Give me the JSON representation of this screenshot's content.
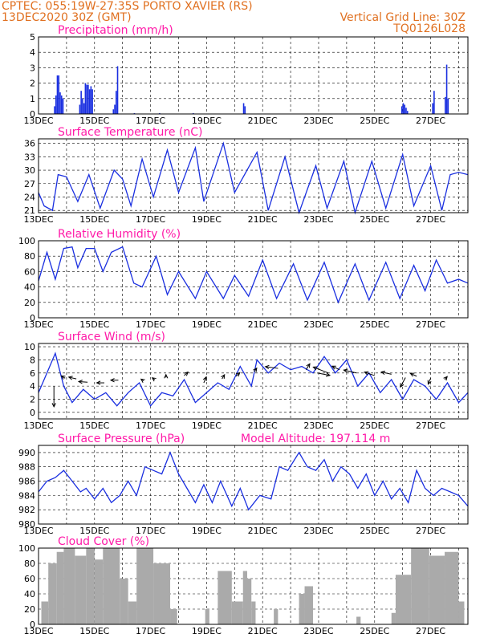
{
  "header": {
    "line1": "CPTEC:   055:19W-27:35S   PORTO XAVIER (RS)",
    "line2": "13DEC2020 30Z (GMT)",
    "grid_note": "Vertical Grid Line: 30Z",
    "code": "TQ0126L028"
  },
  "colors": {
    "header": "#e07020",
    "title": "#ff1aa8",
    "line": "#1a2fe0",
    "cloud": "#aaaaaa"
  },
  "chart_data": [
    {
      "type": "bar",
      "title": "Precipitation (mm/h)",
      "ylim": [
        0,
        5
      ],
      "yticks": [
        "0",
        "1",
        "2",
        "3",
        "4",
        "5"
      ],
      "xticks": [
        "13DEC",
        "15DEC",
        "17DEC",
        "19DEC",
        "21DEC",
        "23DEC",
        "25DEC",
        "27DEC"
      ],
      "x_start_label": "13DEC",
      "days_span": 15.33,
      "bars": [
        [
          0.55,
          0.5
        ],
        [
          0.6,
          1.2
        ],
        [
          0.65,
          2.5
        ],
        [
          0.7,
          2.5
        ],
        [
          0.75,
          1.4
        ],
        [
          0.8,
          1.2
        ],
        [
          0.85,
          1.0
        ],
        [
          1.45,
          0.6
        ],
        [
          1.5,
          1.5
        ],
        [
          1.55,
          1.0
        ],
        [
          1.6,
          0.7
        ],
        [
          1.65,
          2.0
        ],
        [
          1.7,
          1.9
        ],
        [
          1.75,
          1.9
        ],
        [
          1.8,
          1.6
        ],
        [
          1.85,
          1.8
        ],
        [
          1.9,
          1.6
        ],
        [
          2.65,
          0.3
        ],
        [
          2.7,
          0.6
        ],
        [
          2.75,
          1.5
        ],
        [
          2.8,
          3.1
        ],
        [
          3.4,
          0.05
        ],
        [
          4.3,
          0.05
        ],
        [
          5.5,
          0.05
        ],
        [
          7.3,
          0.7
        ],
        [
          7.35,
          0.5
        ],
        [
          12.95,
          0.5
        ],
        [
          13.0,
          0.7
        ],
        [
          13.05,
          0.6
        ],
        [
          13.1,
          0.4
        ],
        [
          13.15,
          0.2
        ],
        [
          14.05,
          0.7
        ],
        [
          14.1,
          1.5
        ],
        [
          14.5,
          1.1
        ],
        [
          14.55,
          3.2
        ],
        [
          14.6,
          1.0
        ]
      ]
    },
    {
      "type": "line",
      "title": "Surface Temperature (nC)",
      "ylim": [
        20.5,
        37
      ],
      "yticks": [
        "21",
        "24",
        "27",
        "30",
        "33",
        "36"
      ],
      "xticks": [
        "13DEC",
        "15DEC",
        "17DEC",
        "19DEC",
        "21DEC",
        "23DEC",
        "25DEC",
        "27DEC"
      ],
      "points": [
        [
          0,
          25
        ],
        [
          0.2,
          22
        ],
        [
          0.5,
          21
        ],
        [
          0.7,
          29
        ],
        [
          1.0,
          28.5
        ],
        [
          1.4,
          23
        ],
        [
          1.8,
          29
        ],
        [
          2.2,
          21.5
        ],
        [
          2.7,
          30
        ],
        [
          3.0,
          28
        ],
        [
          3.3,
          22
        ],
        [
          3.7,
          32.5
        ],
        [
          4.1,
          24
        ],
        [
          4.6,
          34.5
        ],
        [
          5.0,
          25
        ],
        [
          5.6,
          35
        ],
        [
          5.9,
          23
        ],
        [
          6.6,
          36
        ],
        [
          7.0,
          25
        ],
        [
          7.8,
          34
        ],
        [
          8.2,
          21
        ],
        [
          8.8,
          33
        ],
        [
          9.3,
          20.5
        ],
        [
          9.9,
          31
        ],
        [
          10.3,
          21.5
        ],
        [
          10.9,
          32
        ],
        [
          11.3,
          20.5
        ],
        [
          11.9,
          32
        ],
        [
          12.4,
          21.5
        ],
        [
          13.0,
          33.5
        ],
        [
          13.4,
          22
        ],
        [
          14.0,
          31
        ],
        [
          14.4,
          21
        ],
        [
          14.7,
          29
        ],
        [
          15.0,
          29.5
        ],
        [
          15.33,
          29
        ]
      ]
    },
    {
      "type": "line",
      "title": "Relative Humidity (%)",
      "ylim": [
        0,
        100
      ],
      "yticks": [
        "0",
        "20",
        "40",
        "60",
        "80",
        "100"
      ],
      "xticks": [
        "13DEC",
        "15DEC",
        "17DEC",
        "19DEC",
        "21DEC",
        "23DEC",
        "25DEC",
        "27DEC"
      ],
      "points": [
        [
          0,
          48
        ],
        [
          0.3,
          85
        ],
        [
          0.6,
          50
        ],
        [
          0.9,
          90
        ],
        [
          1.2,
          92
        ],
        [
          1.4,
          65
        ],
        [
          1.7,
          90
        ],
        [
          2.0,
          90
        ],
        [
          2.3,
          60
        ],
        [
          2.6,
          85
        ],
        [
          3.0,
          92
        ],
        [
          3.4,
          45
        ],
        [
          3.7,
          40
        ],
        [
          4.2,
          80
        ],
        [
          4.6,
          30
        ],
        [
          5.0,
          60
        ],
        [
          5.6,
          25
        ],
        [
          6.0,
          60
        ],
        [
          6.6,
          25
        ],
        [
          7.0,
          55
        ],
        [
          7.5,
          28
        ],
        [
          8.0,
          75
        ],
        [
          8.5,
          25
        ],
        [
          9.1,
          70
        ],
        [
          9.6,
          23
        ],
        [
          10.2,
          72
        ],
        [
          10.7,
          20
        ],
        [
          11.3,
          70
        ],
        [
          11.8,
          23
        ],
        [
          12.4,
          72
        ],
        [
          12.9,
          25
        ],
        [
          13.4,
          68
        ],
        [
          13.8,
          35
        ],
        [
          14.2,
          75
        ],
        [
          14.6,
          45
        ],
        [
          15.0,
          50
        ],
        [
          15.33,
          45
        ]
      ]
    },
    {
      "type": "line",
      "title": "Surface Wind (m/s)",
      "ylim": [
        -1,
        10.5
      ],
      "yticks": [
        "0",
        "2",
        "4",
        "6",
        "8",
        "10"
      ],
      "xticks": [
        "13DEC",
        "15DEC",
        "17DEC",
        "19DEC",
        "21DEC",
        "23DEC",
        "25DEC",
        "27DEC"
      ],
      "points": [
        [
          0,
          3
        ],
        [
          0.3,
          6
        ],
        [
          0.6,
          9
        ],
        [
          0.9,
          4
        ],
        [
          1.2,
          1.5
        ],
        [
          1.6,
          3.5
        ],
        [
          2.0,
          2
        ],
        [
          2.4,
          3
        ],
        [
          2.8,
          1
        ],
        [
          3.2,
          3
        ],
        [
          3.6,
          4.5
        ],
        [
          4.0,
          1
        ],
        [
          4.4,
          3
        ],
        [
          4.8,
          2.5
        ],
        [
          5.2,
          5
        ],
        [
          5.6,
          1.5
        ],
        [
          6.0,
          3
        ],
        [
          6.4,
          4.5
        ],
        [
          6.8,
          3.5
        ],
        [
          7.2,
          7
        ],
        [
          7.6,
          4
        ],
        [
          7.8,
          8
        ],
        [
          8.2,
          6
        ],
        [
          8.6,
          7.5
        ],
        [
          9.0,
          6.5
        ],
        [
          9.4,
          7
        ],
        [
          9.8,
          6
        ],
        [
          10.2,
          8.5
        ],
        [
          10.6,
          6
        ],
        [
          11.0,
          8
        ],
        [
          11.4,
          4
        ],
        [
          11.8,
          6
        ],
        [
          12.2,
          3
        ],
        [
          12.6,
          5
        ],
        [
          13.0,
          2
        ],
        [
          13.4,
          5
        ],
        [
          13.8,
          4
        ],
        [
          14.2,
          2
        ],
        [
          14.6,
          4.5
        ],
        [
          15.0,
          1.5
        ],
        [
          15.33,
          3
        ]
      ],
      "arrows": [
        [
          0.55,
          4.0,
          0,
          -3.5
        ],
        [
          0.95,
          5.2,
          -0.15,
          0.4
        ],
        [
          1.35,
          5.1,
          -0.3,
          0.3
        ],
        [
          1.75,
          4.6,
          -0.35,
          0.1
        ],
        [
          2.35,
          4.5,
          -0.3,
          0.0
        ],
        [
          2.85,
          4.9,
          -0.3,
          0.0
        ],
        [
          3.75,
          4.8,
          -0.1,
          0.3
        ],
        [
          4.15,
          5.0,
          -0.1,
          0.3
        ],
        [
          4.55,
          5.3,
          0.0,
          0.5
        ],
        [
          5.2,
          5.6,
          0.15,
          0.6
        ],
        [
          5.9,
          4.5,
          0.1,
          1.0
        ],
        [
          6.55,
          5.1,
          0.1,
          0.7
        ],
        [
          7.05,
          5.5,
          0.15,
          0.6
        ],
        [
          7.7,
          6.2,
          0.1,
          0.6
        ],
        [
          8.55,
          6.7,
          -0.5,
          0.3
        ],
        [
          9.55,
          6.5,
          0.15,
          1.0
        ],
        [
          9.95,
          6.0,
          0.5,
          -0.4
        ],
        [
          10.35,
          6.0,
          -0.6,
          1.0
        ],
        [
          10.75,
          6.5,
          -0.3,
          0.6
        ],
        [
          11.35,
          6.0,
          -0.5,
          0.5
        ],
        [
          12.0,
          5.6,
          -0.4,
          0.6
        ],
        [
          12.6,
          5.8,
          -0.4,
          0.4
        ],
        [
          13.1,
          5.3,
          -0.2,
          -1.6
        ],
        [
          13.5,
          5.5,
          -0.25,
          0.5
        ],
        [
          14.0,
          5.2,
          -0.1,
          -1.0
        ],
        [
          14.5,
          5.0,
          0.1,
          0.5
        ]
      ]
    },
    {
      "type": "line",
      "title": "Surface Pressure (hPa)",
      "annotation": "Model Altitude: 197.114  m",
      "ylim": [
        980,
        991
      ],
      "yticks": [
        "980",
        "982",
        "984",
        "986",
        "988",
        "990"
      ],
      "xticks": [
        "13DEC",
        "15DEC",
        "17DEC",
        "19DEC",
        "21DEC",
        "23DEC",
        "25DEC",
        "27DEC"
      ],
      "points": [
        [
          0,
          984.5
        ],
        [
          0.3,
          986
        ],
        [
          0.6,
          986.5
        ],
        [
          0.9,
          987.5
        ],
        [
          1.2,
          986
        ],
        [
          1.5,
          984.5
        ],
        [
          1.7,
          985
        ],
        [
          2.0,
          983.5
        ],
        [
          2.3,
          985
        ],
        [
          2.6,
          983
        ],
        [
          2.9,
          984
        ],
        [
          3.2,
          986
        ],
        [
          3.5,
          984
        ],
        [
          3.8,
          988
        ],
        [
          4.1,
          987.5
        ],
        [
          4.4,
          987
        ],
        [
          4.7,
          990
        ],
        [
          5.0,
          987
        ],
        [
          5.3,
          985
        ],
        [
          5.6,
          983
        ],
        [
          5.9,
          985.5
        ],
        [
          6.2,
          983
        ],
        [
          6.5,
          986
        ],
        [
          6.9,
          982.5
        ],
        [
          7.2,
          985
        ],
        [
          7.5,
          982
        ],
        [
          7.9,
          984
        ],
        [
          8.3,
          983.5
        ],
        [
          8.6,
          988
        ],
        [
          8.9,
          987.5
        ],
        [
          9.3,
          990
        ],
        [
          9.6,
          988
        ],
        [
          9.9,
          987.5
        ],
        [
          10.2,
          989
        ],
        [
          10.5,
          986
        ],
        [
          10.8,
          988
        ],
        [
          11.1,
          987
        ],
        [
          11.4,
          985
        ],
        [
          11.7,
          987
        ],
        [
          12.0,
          984
        ],
        [
          12.3,
          986
        ],
        [
          12.6,
          983.5
        ],
        [
          12.9,
          985
        ],
        [
          13.2,
          983
        ],
        [
          13.5,
          987.5
        ],
        [
          13.8,
          985
        ],
        [
          14.1,
          984
        ],
        [
          14.4,
          985
        ],
        [
          14.7,
          984.5
        ],
        [
          15.0,
          984
        ],
        [
          15.33,
          982.5
        ]
      ]
    },
    {
      "type": "bar",
      "title": "Cloud Cover (%)",
      "ylim": [
        0,
        100
      ],
      "yticks": [
        "0",
        "20",
        "40",
        "60",
        "80",
        "100"
      ],
      "xticks": [
        "13DEC",
        "15DEC",
        "17DEC",
        "19DEC",
        "21DEC",
        "23DEC",
        "25DEC",
        "27DEC"
      ],
      "blocks": [
        [
          0.1,
          0.35,
          30
        ],
        [
          0.35,
          0.65,
          80
        ],
        [
          0.65,
          0.9,
          95
        ],
        [
          0.9,
          1.3,
          100
        ],
        [
          1.3,
          1.7,
          90
        ],
        [
          1.7,
          2.0,
          100
        ],
        [
          2.0,
          2.3,
          85
        ],
        [
          2.3,
          2.9,
          100
        ],
        [
          2.9,
          3.2,
          60
        ],
        [
          3.2,
          3.5,
          30
        ],
        [
          3.5,
          4.1,
          100
        ],
        [
          4.1,
          4.7,
          80
        ],
        [
          4.7,
          4.95,
          20
        ],
        [
          5.95,
          6.1,
          20
        ],
        [
          6.4,
          6.9,
          70
        ],
        [
          6.9,
          7.3,
          30
        ],
        [
          7.3,
          7.45,
          70
        ],
        [
          7.45,
          7.6,
          60
        ],
        [
          7.6,
          7.75,
          30
        ],
        [
          8.4,
          8.55,
          20
        ],
        [
          9.3,
          9.5,
          40
        ],
        [
          9.5,
          9.8,
          50
        ],
        [
          11.35,
          11.5,
          10
        ],
        [
          12.6,
          12.75,
          15
        ],
        [
          12.75,
          13.3,
          65
        ],
        [
          13.3,
          13.95,
          100
        ],
        [
          13.95,
          14.5,
          90
        ],
        [
          14.5,
          15.0,
          95
        ],
        [
          15.0,
          15.2,
          30
        ]
      ]
    }
  ]
}
